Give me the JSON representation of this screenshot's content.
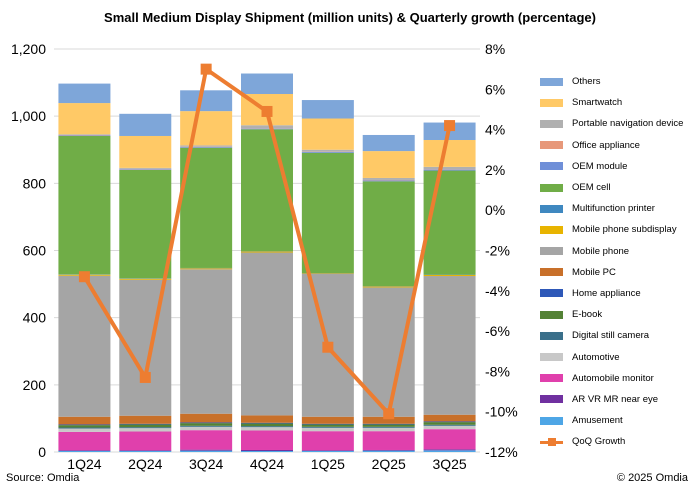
{
  "title": "Small Medium Display Shipment (million units) & Quarterly growth (percentage)",
  "source": "Source: Omdia",
  "copyright": "© 2025 Omdia",
  "chart_data": {
    "type": "bar",
    "stacked": true,
    "categories": [
      "1Q24",
      "2Q24",
      "3Q24",
      "4Q24",
      "1Q25",
      "2Q25",
      "3Q25"
    ],
    "y_left": {
      "ylim": [
        0,
        1200
      ],
      "ticks": [
        "0",
        "200",
        "400",
        "600",
        "800",
        "1,000",
        "1,200"
      ],
      "tick_values": [
        0,
        200,
        400,
        600,
        800,
        1000,
        1200
      ]
    },
    "y_right": {
      "ylim": [
        -12,
        8
      ],
      "ticks": [
        "-12%",
        "-10%",
        "-8%",
        "-6%",
        "-4%",
        "-2%",
        "0%",
        "2%",
        "4%",
        "6%",
        "8%"
      ],
      "tick_values": [
        -12,
        -10,
        -8,
        -6,
        -4,
        -2,
        0,
        2,
        4,
        6,
        8
      ]
    },
    "grid": true,
    "legend_position": "right",
    "series": [
      {
        "name": "Amusement",
        "color": "#4ea6e6",
        "values": [
          3,
          3,
          4,
          3,
          3,
          4,
          5
        ]
      },
      {
        "name": "AR VR MR near eye",
        "color": "#7030a0",
        "values": [
          2,
          2,
          3,
          3,
          2,
          2,
          3
        ]
      },
      {
        "name": "Automobile monitor",
        "color": "#e040ac",
        "values": [
          55,
          56,
          58,
          58,
          57,
          56,
          60
        ]
      },
      {
        "name": "Automotive",
        "color": "#c8c8c8",
        "values": [
          10,
          10,
          10,
          10,
          10,
          10,
          10
        ]
      },
      {
        "name": "Digital still camera",
        "color": "#3a6f8a",
        "values": [
          3,
          3,
          3,
          3,
          3,
          3,
          3
        ]
      },
      {
        "name": "E-book",
        "color": "#548235",
        "values": [
          7,
          8,
          8,
          8,
          7,
          7,
          8
        ]
      },
      {
        "name": "Home appliance",
        "color": "#2e58b8",
        "values": [
          2,
          2,
          2,
          2,
          2,
          2,
          2
        ]
      },
      {
        "name": "Mobile PC",
        "color": "#c8702a",
        "values": [
          23,
          24,
          26,
          22,
          21,
          21,
          20
        ]
      },
      {
        "name": "Mobile phone",
        "color": "#a5a5a5",
        "values": [
          420,
          405,
          430,
          485,
          425,
          385,
          413
        ]
      },
      {
        "name": "Mobile phone subdisplay",
        "color": "#e8b400",
        "values": [
          3,
          3,
          3,
          3,
          2,
          3,
          3
        ]
      },
      {
        "name": "Multifunction printer",
        "color": "#3f88c0",
        "values": [
          1,
          1,
          1,
          1,
          1,
          1,
          1
        ]
      },
      {
        "name": "OEM cell",
        "color": "#70ad47",
        "values": [
          412,
          323,
          358,
          363,
          358,
          312,
          310
        ]
      },
      {
        "name": "OEM module",
        "color": "#6f8fd8",
        "values": [
          2,
          2,
          2,
          2,
          3,
          3,
          3
        ]
      },
      {
        "name": "Office appliance",
        "color": "#e7987a",
        "values": [
          1,
          1,
          1,
          1,
          1,
          1,
          1
        ]
      },
      {
        "name": "Portable navigation device",
        "color": "#b0b0b0",
        "values": [
          2,
          3,
          4,
          9,
          5,
          6,
          7
        ]
      },
      {
        "name": "Smartwatch",
        "color": "#ffc966",
        "values": [
          93,
          95,
          102,
          93,
          93,
          80,
          80
        ]
      },
      {
        "name": "Others",
        "color": "#7ea6d9",
        "values": [
          58,
          66,
          62,
          61,
          55,
          48,
          52
        ]
      }
    ],
    "line_series": {
      "name": "QoQ Growth",
      "color": "#ed7d31",
      "axis": "right",
      "values": [
        -3.3,
        -8.3,
        7.0,
        4.9,
        -6.8,
        -10.1,
        4.2
      ]
    }
  }
}
